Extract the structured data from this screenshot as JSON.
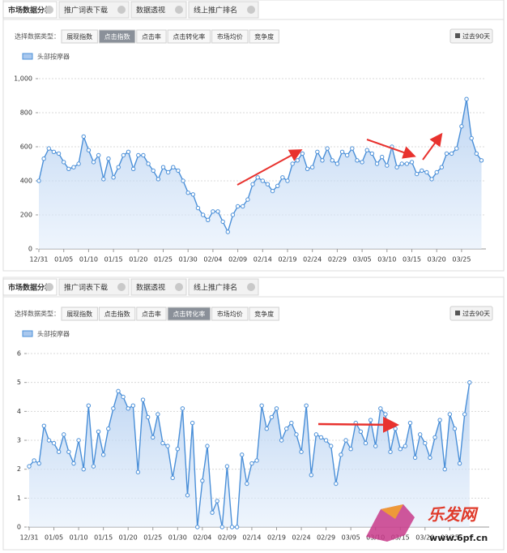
{
  "panels": [
    {
      "tabs": [
        "市场数据分析",
        "推广词表下载",
        "数据透视",
        "线上推广排名"
      ],
      "filter_label": "选择数据类型：",
      "filters": [
        {
          "label": "展现指数"
        },
        {
          "label": "点击指数",
          "active": true
        },
        {
          "label": "点击率"
        },
        {
          "label": "点击转化率"
        },
        {
          "label": "市场均价"
        },
        {
          "label": "竞争度"
        }
      ],
      "range_button": "过去90天"
    },
    {
      "tabs": [
        "市场数据分析",
        "推广词表下载",
        "数据透视",
        "线上推广排名"
      ],
      "filter_label": "选择数据类型：",
      "filters": [
        {
          "label": "展现指数"
        },
        {
          "label": "点击指数"
        },
        {
          "label": "点击率"
        },
        {
          "label": "点击转化率",
          "active": true
        },
        {
          "label": "市场均价"
        },
        {
          "label": "竞争度"
        }
      ],
      "range_button": "过去90天"
    }
  ],
  "chart_data": [
    {
      "type": "line",
      "grid": true,
      "categories": [
        "12/31",
        null,
        null,
        null,
        null,
        "01/05",
        null,
        null,
        null,
        null,
        "01/10",
        null,
        null,
        null,
        null,
        "01/15",
        null,
        null,
        null,
        null,
        "01/20",
        null,
        null,
        null,
        null,
        "01/25",
        null,
        null,
        null,
        null,
        "01/30",
        null,
        null,
        null,
        null,
        "02/04",
        null,
        null,
        null,
        null,
        "02/09",
        null,
        null,
        null,
        null,
        "02/14",
        null,
        null,
        null,
        null,
        "02/19",
        null,
        null,
        null,
        null,
        "02/24",
        null,
        null,
        null,
        null,
        "02/29",
        null,
        null,
        null,
        null,
        "03/05",
        null,
        null,
        null,
        null,
        "03/10",
        null,
        null,
        null,
        null,
        "03/15",
        null,
        null,
        null,
        null,
        "03/20",
        null,
        null,
        null,
        null,
        "03/25",
        null,
        null,
        null,
        null
      ],
      "series": [
        {
          "name": "头部按摩器",
          "color": "#4a8fd8",
          "values": [
            400,
            530,
            590,
            570,
            560,
            510,
            470,
            480,
            500,
            660,
            580,
            510,
            550,
            410,
            530,
            420,
            480,
            550,
            570,
            470,
            550,
            550,
            500,
            460,
            410,
            480,
            450,
            480,
            460,
            400,
            330,
            320,
            240,
            200,
            170,
            220,
            220,
            160,
            100,
            200,
            250,
            250,
            290,
            380,
            420,
            400,
            380,
            340,
            370,
            420,
            400,
            500,
            520,
            560,
            470,
            480,
            570,
            520,
            590,
            520,
            500,
            570,
            550,
            590,
            520,
            510,
            580,
            560,
            500,
            540,
            490,
            600,
            480,
            500,
            500,
            510,
            440,
            460,
            450,
            410,
            450,
            480,
            560,
            560,
            590,
            720,
            880,
            650,
            560,
            520
          ]
        }
      ],
      "ylim": [
        0,
        1000
      ],
      "yticks": [
        0,
        200,
        400,
        600,
        800,
        {
          "value": 1000,
          "label": "1,000"
        }
      ]
    },
    {
      "type": "line",
      "grid": true,
      "categories": [
        "12/31",
        null,
        null,
        null,
        null,
        "01/05",
        null,
        null,
        null,
        null,
        "01/10",
        null,
        null,
        null,
        null,
        "01/15",
        null,
        null,
        null,
        null,
        "01/20",
        null,
        null,
        null,
        null,
        "01/25",
        null,
        null,
        null,
        null,
        "01/30",
        null,
        null,
        null,
        null,
        "02/04",
        null,
        null,
        null,
        null,
        "02/09",
        null,
        null,
        null,
        null,
        "02/14",
        null,
        null,
        null,
        null,
        "02/19",
        null,
        null,
        null,
        null,
        "02/24",
        null,
        null,
        null,
        null,
        "02/29",
        null,
        null,
        null,
        null,
        "03/05",
        null,
        null,
        null,
        null,
        "03/10",
        null,
        null,
        null,
        null,
        "03/15",
        null,
        null,
        null,
        null,
        "03/20",
        null,
        null,
        null,
        null,
        "03/25",
        null,
        null,
        null,
        null
      ],
      "series": [
        {
          "name": "头部按摩器",
          "color": "#4a8fd8",
          "values": [
            2.1,
            2.3,
            2.2,
            3.5,
            3.0,
            2.9,
            2.6,
            3.2,
            2.6,
            2.2,
            3.0,
            2.0,
            4.2,
            2.1,
            3.3,
            2.5,
            3.4,
            4.1,
            4.7,
            4.5,
            4.1,
            4.2,
            1.9,
            4.4,
            3.8,
            3.1,
            3.9,
            2.9,
            2.8,
            1.7,
            2.7,
            4.1,
            1.1,
            3.6,
            0.0,
            1.6,
            2.8,
            0.5,
            0.9,
            0.0,
            2.1,
            0.0,
            0.0,
            2.5,
            1.5,
            2.2,
            2.3,
            4.2,
            3.4,
            3.8,
            4.1,
            3.0,
            3.4,
            3.6,
            3.2,
            2.6,
            4.2,
            1.8,
            3.2,
            3.1,
            3.0,
            2.8,
            1.5,
            2.5,
            3.0,
            2.7,
            3.6,
            3.3,
            2.9,
            3.7,
            2.8,
            4.1,
            3.9,
            2.6,
            3.4,
            2.7,
            2.8,
            3.6,
            2.4,
            3.2,
            2.9,
            2.4,
            3.1,
            3.7,
            2.0,
            3.9,
            3.4,
            2.2,
            3.9,
            5.0
          ]
        }
      ],
      "ylim": [
        0,
        6
      ],
      "yticks": [
        0,
        1,
        2,
        3,
        4,
        5,
        6
      ]
    }
  ],
  "watermark": {
    "brand": "乐发网",
    "url": "www.6pf.cn"
  }
}
